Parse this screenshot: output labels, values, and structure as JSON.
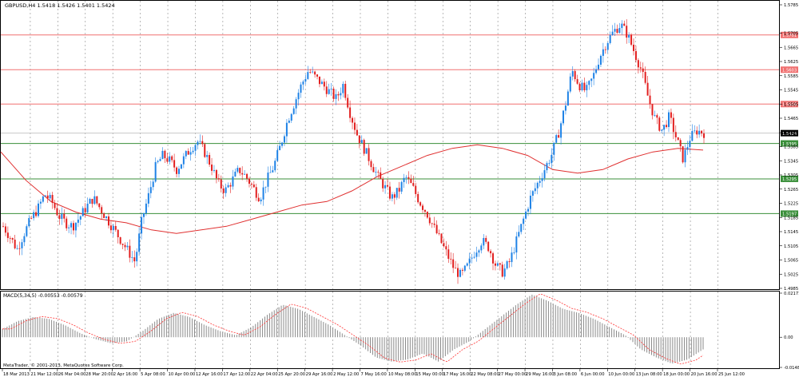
{
  "window": {
    "symbol_line": "GBPUSD,H4  1.5418 1.5426 1.5401 1.5424"
  },
  "price_axis": {
    "ticks": [
      "1.5785",
      "1.5705",
      "1.5665",
      "1.5625",
      "1.5585",
      "1.5545",
      "1.5505",
      "1.5465",
      "1.5424",
      "1.5385",
      "1.5345",
      "1.5305",
      "1.5265",
      "1.5225",
      "1.5185",
      "1.5145",
      "1.5105",
      "1.5065",
      "1.5025",
      "1.4985"
    ]
  },
  "levels": {
    "resistance": [
      {
        "label": "1.5701",
        "price": 1.5701
      },
      {
        "label": "1.5603",
        "price": 1.5603
      },
      {
        "label": "1.5506",
        "price": 1.5506
      }
    ],
    "support": [
      {
        "label": "1.5395",
        "price": 1.5395
      },
      {
        "label": "1.5295",
        "price": 1.5295
      },
      {
        "label": "1.5197",
        "price": 1.5197
      }
    ],
    "current": {
      "label": "1.5424",
      "price": 1.5424
    }
  },
  "macd": {
    "title": "MACD(5,34,5) -0.00553 -0.00579",
    "ticks": [
      "0.02171",
      "0.00",
      "-0.01486"
    ]
  },
  "time_axis": {
    "ticks": [
      "18 Mar 2013",
      "21 Mar 12:00",
      "26 Mar 04:00",
      "28 Mar 20:00",
      "2 Apr 16:00",
      "5 Apr 08:00",
      "10 Apr 00:00",
      "12 Apr 16:00",
      "17 Apr 12:00",
      "22 Apr 04:00",
      "25 Apr 20:00",
      "29 Apr 16:00",
      "2 May 12:00",
      "7 May 16:00",
      "10 May 08:00",
      "15 May 00:00",
      "17 May 16:00",
      "22 May 08:00",
      "27 May 00:00",
      "29 May 16:00",
      "3 Jun 08:00",
      "6 Jun 00:00",
      "10 Jun 00:00",
      "13 Jun 08:00",
      "18 Jun 00:00",
      "20 Jun 16:00",
      "25 Jun 12:00"
    ]
  },
  "copyright": "MetaTrader, © 2001-2013, MetaQuotes Software Corp.",
  "colors": {
    "bull": "#1e82e6",
    "bear": "#e21f1f",
    "ma": "#e03030",
    "resistance": "#f07070",
    "support": "#3a8f3a",
    "current_bg": "#000000",
    "grid": "#8a8a8a",
    "hist": "#8a8a8a",
    "signal": "#ff3333"
  },
  "chart_data": {
    "type": "candlestick",
    "symbol": "GBPUSD",
    "timeframe": "H4",
    "ylim": [
      1.4985,
      1.5785
    ],
    "x_labels_count": 27,
    "candles_sampled": [
      1.516,
      1.513,
      1.5095,
      1.514,
      1.518,
      1.521,
      1.525,
      1.523,
      1.519,
      1.517,
      1.516,
      1.5185,
      1.5215,
      1.524,
      1.521,
      1.518,
      1.515,
      1.512,
      1.509,
      1.506,
      1.518,
      1.525,
      1.533,
      1.536,
      1.5345,
      1.532,
      1.535,
      1.538,
      1.54,
      1.537,
      1.533,
      1.528,
      1.526,
      1.529,
      1.532,
      1.53,
      1.527,
      1.524,
      1.529,
      1.533,
      1.539,
      1.546,
      1.551,
      1.556,
      1.56,
      1.558,
      1.556,
      1.554,
      1.552,
      1.556,
      1.548,
      1.542,
      1.538,
      1.534,
      1.53,
      1.527,
      1.524,
      1.526,
      1.53,
      1.527,
      1.523,
      1.52,
      1.516,
      1.512,
      1.508,
      1.504,
      1.502,
      1.505,
      1.509,
      1.512,
      1.51,
      1.505,
      1.503,
      1.506,
      1.512,
      1.518,
      1.524,
      1.528,
      1.532,
      1.536,
      1.542,
      1.55,
      1.56,
      1.556,
      1.554,
      1.558,
      1.564,
      1.568,
      1.571,
      1.573,
      1.57,
      1.565,
      1.56,
      1.552,
      1.546,
      1.543,
      1.547,
      1.541,
      1.535,
      1.541,
      1.543,
      1.5424
    ],
    "ma_sampled": [
      1.537,
      1.529,
      1.523,
      1.52,
      1.518,
      1.517,
      1.515,
      1.514,
      1.515,
      1.516,
      1.518,
      1.52,
      1.522,
      1.523,
      1.526,
      1.53,
      1.533,
      1.536,
      1.538,
      1.539,
      1.538,
      1.536,
      1.532,
      1.531,
      1.532,
      1.535,
      1.537,
      1.538,
      1.5375
    ],
    "macd_sampled": [
      0.004,
      0.008,
      0.01,
      0.009,
      0.006,
      0.002,
      -0.001,
      -0.003,
      -0.002,
      0.003,
      0.009,
      0.012,
      0.01,
      0.006,
      0.003,
      0.001,
      0.005,
      0.011,
      0.016,
      0.014,
      0.01,
      0.006,
      0.001,
      -0.004,
      -0.01,
      -0.012,
      -0.011,
      -0.008,
      -0.012,
      -0.006,
      -0.002,
      0.004,
      0.01,
      0.016,
      0.021,
      0.018,
      0.014,
      0.012,
      0.009,
      0.005,
      0.001,
      -0.006,
      -0.01,
      -0.013,
      -0.011,
      -0.006
    ]
  }
}
